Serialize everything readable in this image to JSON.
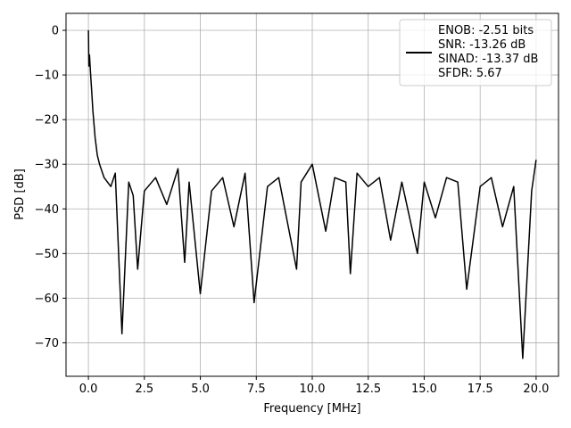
{
  "chart_data": {
    "type": "line",
    "title": "",
    "xlabel": "Frequency [MHz]",
    "ylabel": "PSD [dB]",
    "xlim": [
      -1.0,
      21.0
    ],
    "ylim": [
      -77.5,
      3.8
    ],
    "x_ticks": [
      0.0,
      2.5,
      5.0,
      7.5,
      10.0,
      12.5,
      15.0,
      17.5,
      20.0
    ],
    "x_tick_labels": [
      "0.0",
      "2.5",
      "5.0",
      "7.5",
      "10.0",
      "12.5",
      "15.0",
      "17.5",
      "20.0"
    ],
    "y_ticks": [
      0,
      -10,
      -20,
      -30,
      -40,
      -50,
      -60,
      -70
    ],
    "y_tick_labels": [
      "0",
      "−10",
      "−20",
      "−30",
      "−40",
      "−50",
      "−60",
      "−70"
    ],
    "grid": true,
    "legend_position": "top-right",
    "series": [
      {
        "name": "ENOB: -2.51 bits\nSNR: -13.26 dB\nSINAD: -13.37 dB\nSFDR: 5.67",
        "color": "#000000",
        "x": [
          0.0,
          0.02,
          0.05,
          0.1,
          0.15,
          0.2,
          0.3,
          0.4,
          0.5,
          0.7,
          1.0,
          1.2,
          1.5,
          1.8,
          2.0,
          2.2,
          2.5,
          3.0,
          3.5,
          4.0,
          4.3,
          4.5,
          5.0,
          5.5,
          6.0,
          6.5,
          7.0,
          7.4,
          8.0,
          8.5,
          9.3,
          9.5,
          10.0,
          10.6,
          11.0,
          11.5,
          11.7,
          12.0,
          12.5,
          13.0,
          13.5,
          14.0,
          14.7,
          15.0,
          15.5,
          16.0,
          16.5,
          16.9,
          17.5,
          18.0,
          18.5,
          19.0,
          19.4,
          19.8,
          20.0
        ],
        "y": [
          0.0,
          -8.0,
          -5.5,
          -10.0,
          -14.0,
          -18.0,
          -24.0,
          -28.0,
          -30.0,
          -33.0,
          -35.0,
          -32.0,
          -68.0,
          -34.0,
          -37.0,
          -53.5,
          -36.0,
          -33.0,
          -39.0,
          -31.0,
          -52.0,
          -34.0,
          -59.0,
          -36.0,
          -33.0,
          -44.0,
          -32.0,
          -61.0,
          -35.0,
          -33.0,
          -53.5,
          -34.0,
          -30.0,
          -45.0,
          -33.0,
          -34.0,
          -54.5,
          -32.0,
          -35.0,
          -33.0,
          -47.0,
          -34.0,
          -50.0,
          -34.0,
          -42.0,
          -33.0,
          -34.0,
          -58.0,
          -35.0,
          -33.0,
          -44.0,
          -35.0,
          -73.5,
          -36.0,
          -29.0
        ]
      }
    ]
  }
}
